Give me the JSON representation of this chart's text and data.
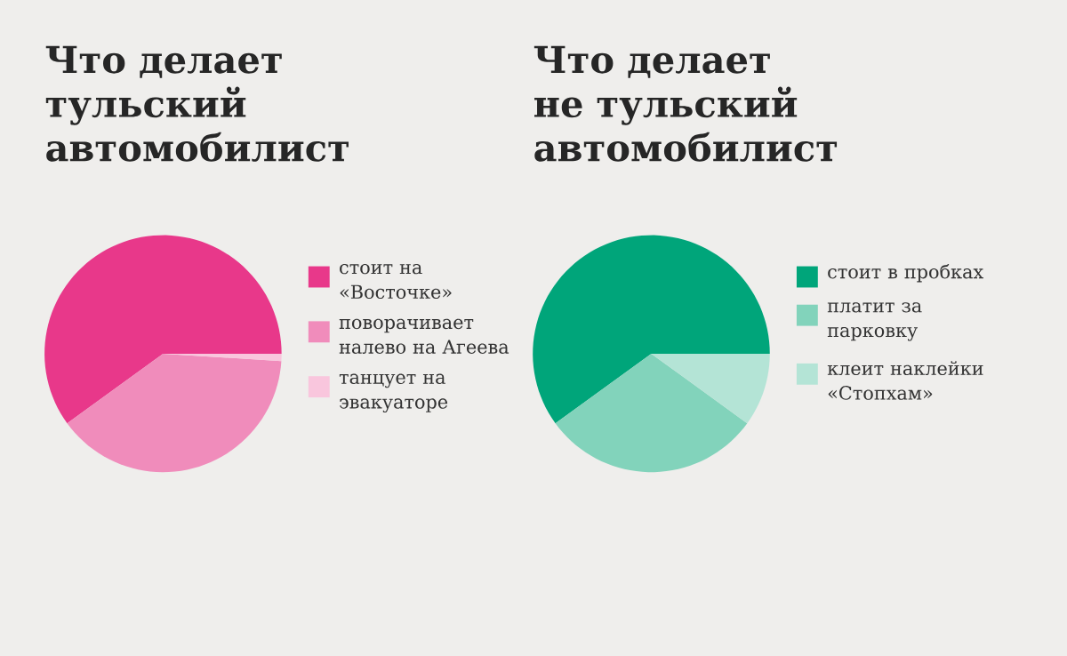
{
  "chart_data": [
    {
      "type": "pie",
      "title": "Что делает тульский автомобилист",
      "categories": [
        "стоит на «Восточке»",
        "поворачивает налево на Агеева",
        "танцует на эвакуаторе"
      ],
      "values": [
        60,
        39,
        1
      ],
      "colors": [
        "#e8388a",
        "#f08cbb",
        "#f9c6dd"
      ],
      "legend": "right"
    },
    {
      "type": "pie",
      "title": "Что делает не тульский автомобилист",
      "categories": [
        "стоит в пробках",
        "платит за парковку",
        "клеит наклейки «Стопхам»"
      ],
      "values": [
        60,
        30,
        10
      ],
      "colors": [
        "#00a57a",
        "#82d3bb",
        "#b4e4d6"
      ],
      "legend": "right"
    }
  ]
}
